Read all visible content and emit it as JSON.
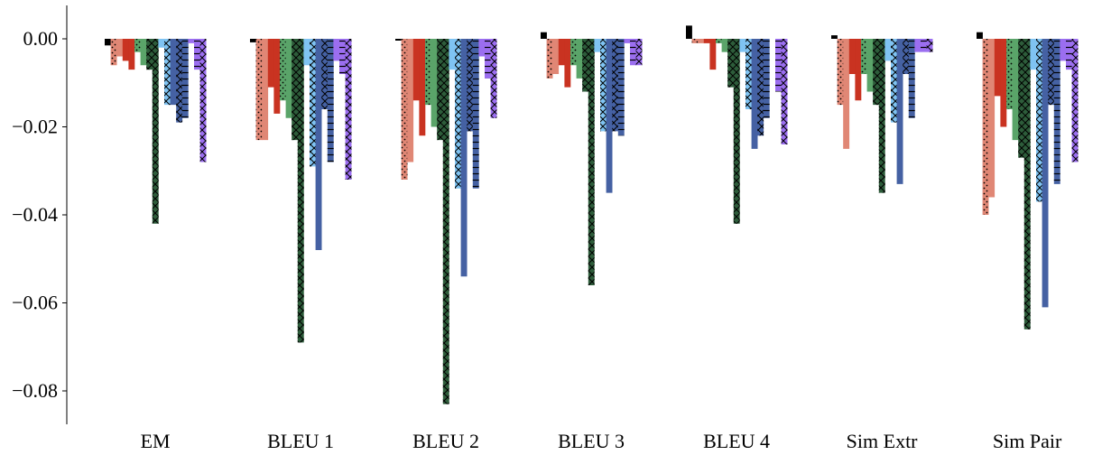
{
  "chart_data": {
    "type": "bar",
    "title": "",
    "xlabel": "",
    "ylabel": "",
    "ylim": [
      -0.087,
      0.008
    ],
    "yticks": [
      0.0,
      -0.02,
      -0.04,
      -0.06,
      -0.08
    ],
    "ytick_labels": [
      "0.00",
      "−0.02",
      "−0.04",
      "−0.06",
      "−0.08"
    ],
    "grid": false,
    "legend": "none",
    "categories": [
      "EM",
      "BLEU 1",
      "BLEU 2",
      "BLEU 3",
      "BLEU 4",
      "Sim Extr",
      "Sim Pair"
    ],
    "series": [
      {
        "color": "#000000",
        "hatch": "none",
        "values": [
          -0.0015,
          -0.0008,
          0.0,
          0.0015,
          0.003,
          0.0008,
          0.0015
        ]
      },
      {
        "color": "#e08775",
        "hatch": "dots",
        "values": [
          -0.006,
          -0.023,
          -0.032,
          -0.009,
          -0.001,
          -0.015,
          -0.04
        ]
      },
      {
        "color": "#e08775",
        "hatch": "none",
        "values": [
          -0.004,
          -0.023,
          -0.028,
          -0.008,
          -0.001,
          -0.025,
          -0.036
        ]
      },
      {
        "color": "#c93321",
        "hatch": "none",
        "values": [
          -0.005,
          -0.011,
          -0.014,
          -0.006,
          -0.001,
          -0.008,
          -0.013
        ]
      },
      {
        "color": "#c93321",
        "hatch": "none",
        "values": [
          -0.007,
          -0.017,
          -0.022,
          -0.011,
          -0.007,
          -0.014,
          -0.02
        ]
      },
      {
        "color": "#5aa469",
        "hatch": "dots",
        "values": [
          -0.003,
          -0.014,
          -0.015,
          -0.006,
          -0.001,
          -0.008,
          -0.016
        ]
      },
      {
        "color": "#5aa469",
        "hatch": "none",
        "values": [
          -0.006,
          -0.018,
          -0.02,
          -0.009,
          -0.003,
          -0.012,
          -0.023
        ]
      },
      {
        "color": "#2d5c3a",
        "hatch": "cross",
        "values": [
          -0.007,
          -0.023,
          -0.023,
          -0.012,
          -0.011,
          -0.015,
          -0.027
        ]
      },
      {
        "color": "#2d5c3a",
        "hatch": "cross",
        "values": [
          -0.042,
          -0.069,
          -0.083,
          -0.056,
          -0.042,
          -0.035,
          -0.066
        ]
      },
      {
        "color": "#7fc3f2",
        "hatch": "none",
        "values": [
          -0.002,
          -0.006,
          -0.007,
          -0.003,
          -0.003,
          -0.005,
          -0.007
        ]
      },
      {
        "color": "#7fc3f2",
        "hatch": "cross",
        "values": [
          -0.015,
          -0.029,
          -0.034,
          -0.021,
          -0.016,
          -0.019,
          -0.037
        ]
      },
      {
        "color": "#4561a3",
        "hatch": "none",
        "values": [
          -0.015,
          -0.048,
          -0.054,
          -0.035,
          -0.025,
          -0.033,
          -0.061
        ]
      },
      {
        "color": "#4561a3",
        "hatch": "cross",
        "values": [
          -0.019,
          -0.016,
          -0.021,
          -0.021,
          -0.022,
          -0.008,
          -0.015
        ]
      },
      {
        "color": "#4561a3",
        "hatch": "hline",
        "values": [
          -0.018,
          -0.028,
          -0.034,
          -0.022,
          -0.018,
          -0.018,
          -0.033
        ]
      },
      {
        "color": "#9b6ef0",
        "hatch": "none",
        "values": [
          -0.001,
          -0.005,
          -0.004,
          -0.001,
          0.0,
          -0.003,
          -0.005
        ]
      },
      {
        "color": "#9b6ef0",
        "hatch": "hline",
        "values": [
          -0.007,
          -0.008,
          -0.009,
          -0.006,
          -0.012,
          -0.003,
          -0.007
        ]
      },
      {
        "color": "#9b6ef0",
        "hatch": "cross",
        "values": [
          -0.028,
          -0.032,
          -0.018,
          -0.006,
          -0.024,
          -0.003,
          -0.028
        ]
      }
    ]
  }
}
